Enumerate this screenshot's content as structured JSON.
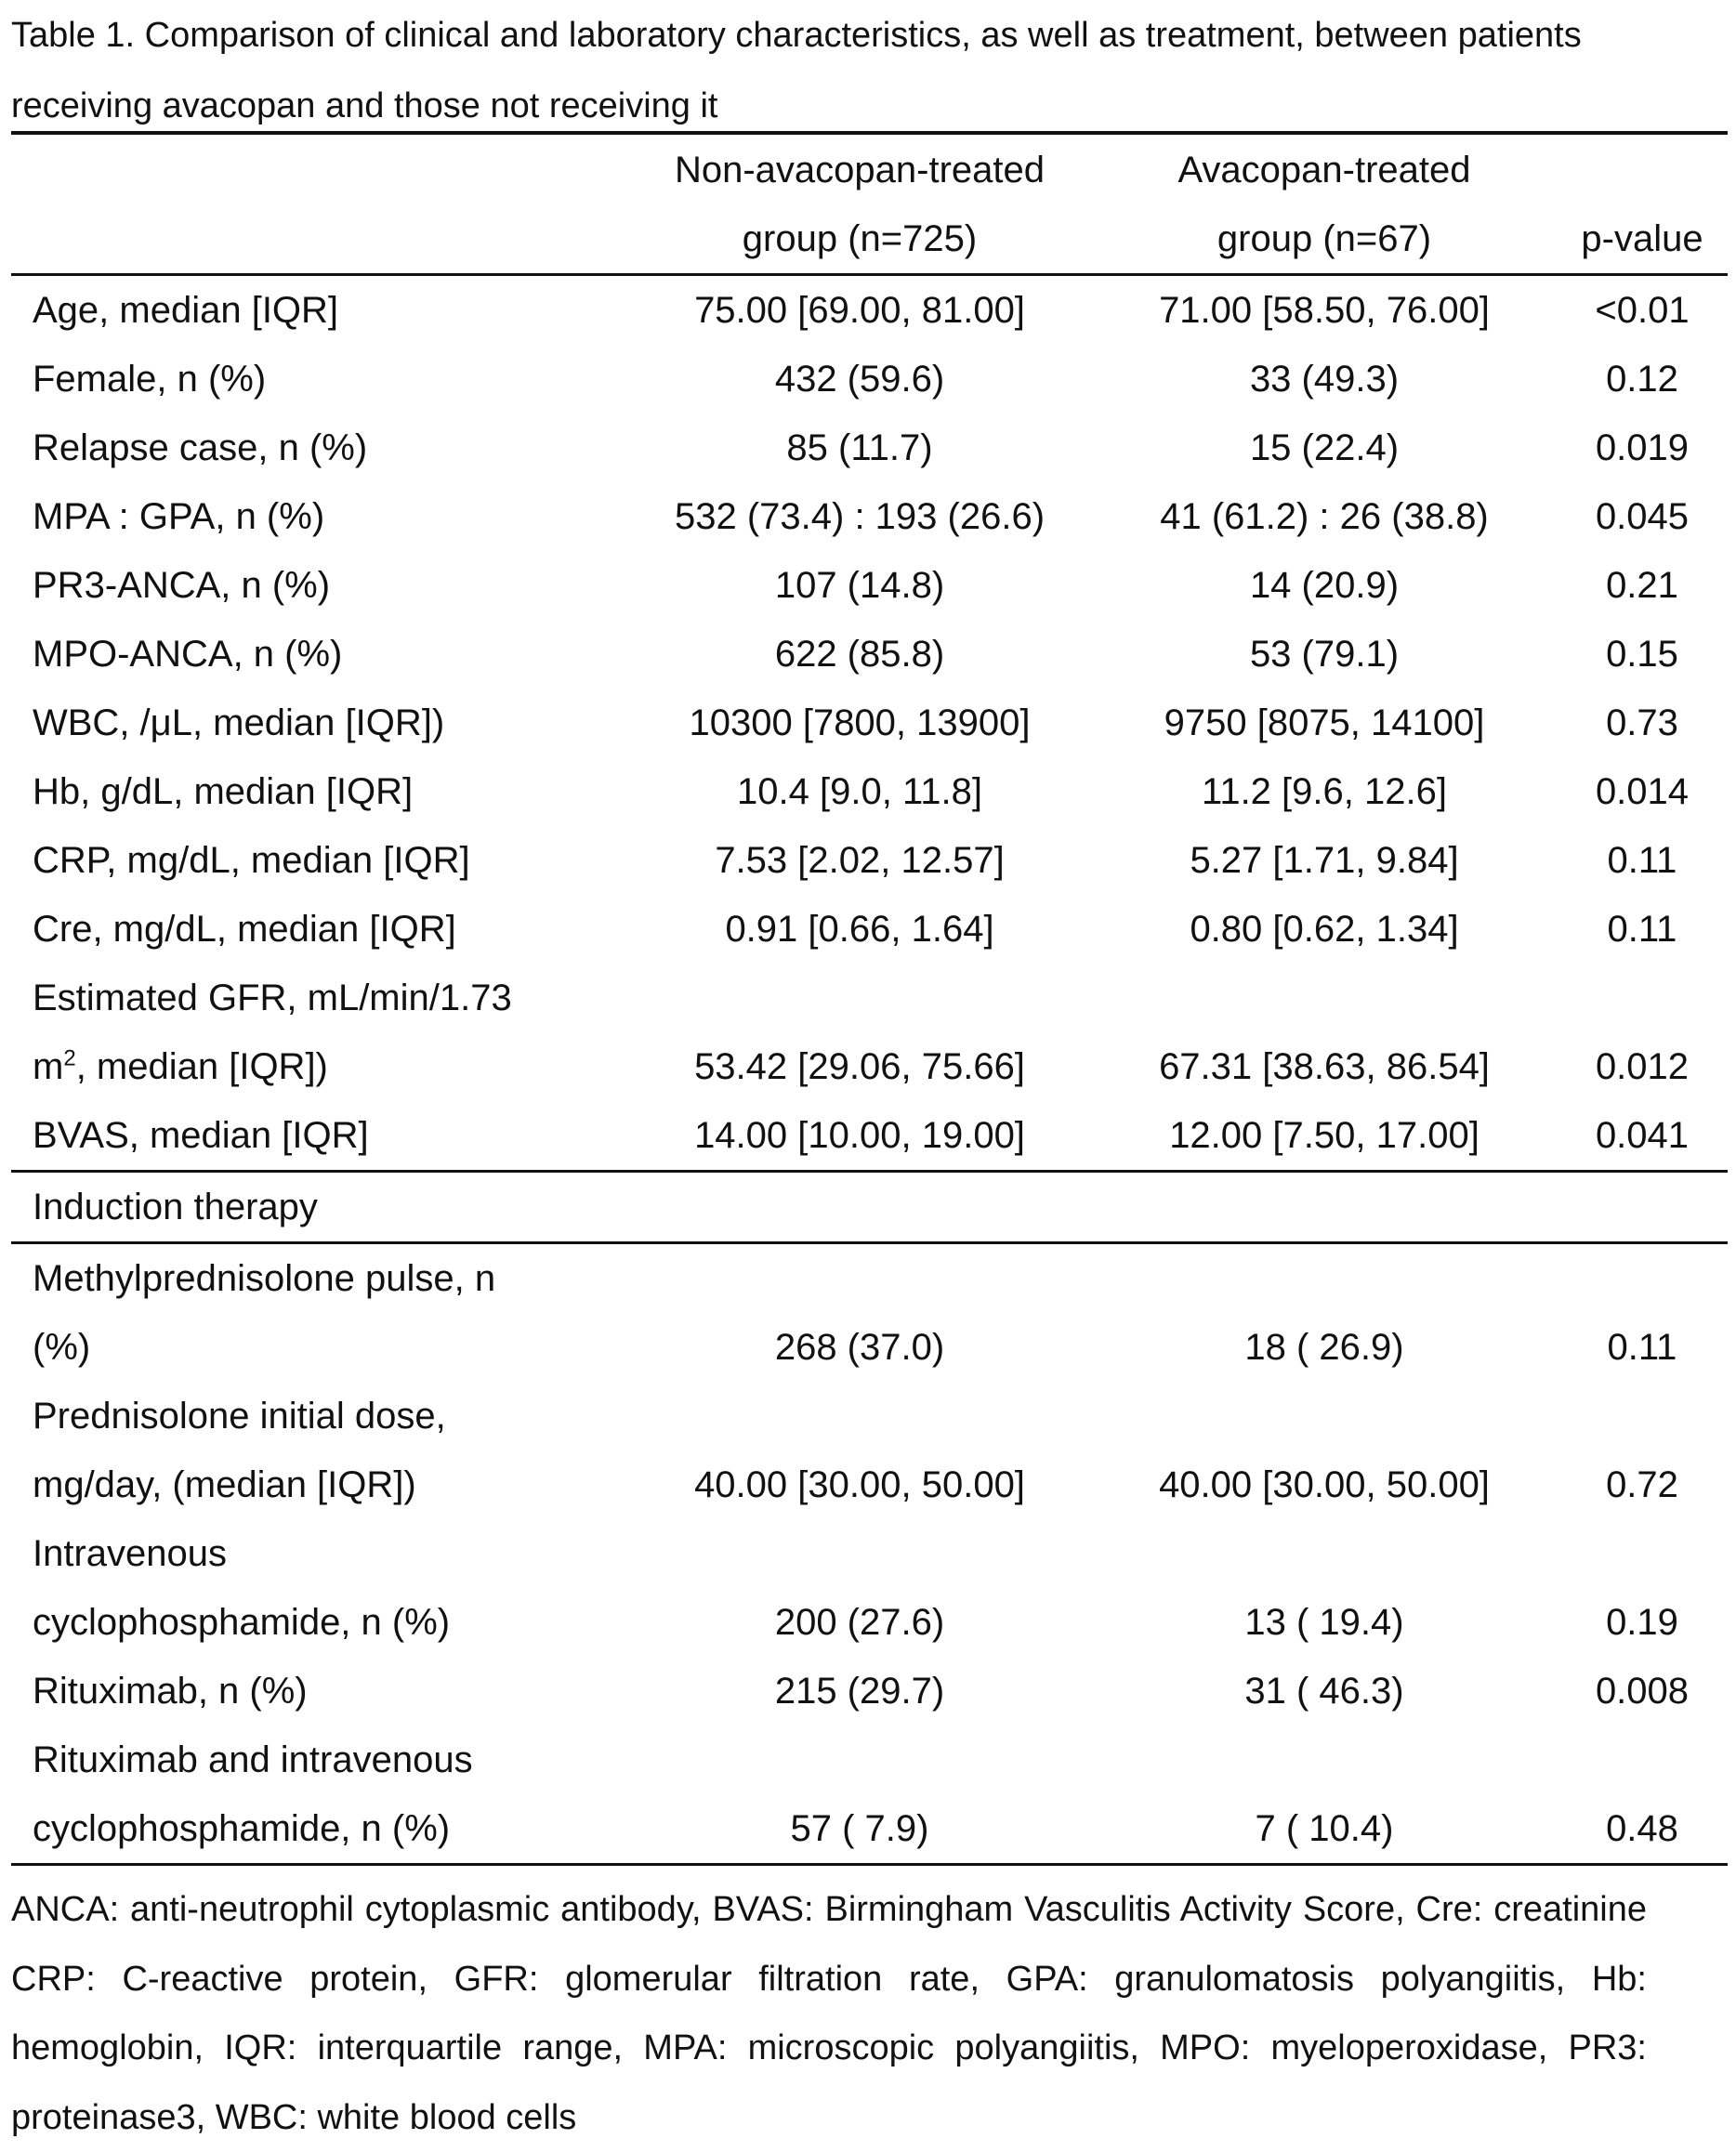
{
  "title": "Table 1. Comparison of clinical and laboratory characteristics, as well as treatment, between patients receiving avacopan and those not receiving it",
  "header": {
    "col1_line1": "Non-avacopan-treated",
    "col1_line2": "group (n=725)",
    "col2_line1": "Avacopan-treated",
    "col2_line2": "group (n=67)",
    "p": "p-value"
  },
  "rows": [
    {
      "label": [
        "Age, median [IQR]"
      ],
      "non": "75.00 [69.00, 81.00]",
      "ava": "71.00 [58.50, 76.00]",
      "p": "<0.01"
    },
    {
      "label": [
        "Female, n (%)"
      ],
      "non": "432 (59.6)",
      "ava": "33 (49.3)",
      "p": "0.12"
    },
    {
      "label": [
        "Relapse case, n (%)"
      ],
      "non": "85 (11.7)",
      "ava": "15 (22.4)",
      "p": "0.019"
    },
    {
      "label": [
        "MPA : GPA, n (%)"
      ],
      "non": "532 (73.4) : 193 (26.6)",
      "ava": "41 (61.2) : 26 (38.8)",
      "p": "0.045"
    },
    {
      "label": [
        "PR3-ANCA, n (%)"
      ],
      "non": "107 (14.8)",
      "ava": "14 (20.9)",
      "p": "0.21"
    },
    {
      "label": [
        "MPO-ANCA, n (%)"
      ],
      "non": "622 (85.8)",
      "ava": "53 (79.1)",
      "p": "0.15"
    },
    {
      "label": [
        "WBC, /μL, median [IQR])"
      ],
      "non": "10300 [7800, 13900]",
      "ava": "9750 [8075, 14100]",
      "p": "0.73"
    },
    {
      "label": [
        "Hb, g/dL, median [IQR]"
      ],
      "non": "10.4 [9.0, 11.8]",
      "ava": "11.2 [9.6, 12.6]",
      "p": "0.014"
    },
    {
      "label": [
        "CRP, mg/dL, median [IQR]"
      ],
      "non": "7.53 [2.02, 12.57]",
      "ava": "5.27 [1.71, 9.84]",
      "p": "0.11"
    },
    {
      "label": [
        "Cre, mg/dL, median [IQR]"
      ],
      "non": "0.91 [0.66, 1.64]",
      "ava": "0.80 [0.62, 1.34]",
      "p": "0.11"
    },
    {
      "label": [
        "Estimated GFR, mL/min/1.73",
        "m"
      ],
      "sup": "2",
      "post": ", median [IQR])",
      "non": "53.42 [29.06, 75.66]",
      "ava": "67.31 [38.63, 86.54]",
      "p": "0.012"
    },
    {
      "label": [
        "BVAS, median [IQR]"
      ],
      "non": "14.00 [10.00, 19.00]",
      "ava": "12.00 [7.50, 17.00]",
      "p": "0.041"
    }
  ],
  "section": "Induction therapy",
  "therapy_rows": [
    {
      "label": [
        "Methylprednisolone pulse, n",
        "(%)"
      ],
      "non": "268 (37.0)",
      "ava": "18 ( 26.9)",
      "p": "0.11"
    },
    {
      "label": [
        "Prednisolone initial dose,",
        "mg/day, (median [IQR])"
      ],
      "non": "40.00 [30.00, 50.00]",
      "ava": "40.00 [30.00, 50.00]",
      "p": "0.72"
    },
    {
      "label": [
        "Intravenous",
        "cyclophosphamide, n (%)"
      ],
      "non": "200 (27.6)",
      "ava": "13 ( 19.4)",
      "p": "0.19"
    },
    {
      "label": [
        "Rituximab, n (%)"
      ],
      "non": "215 (29.7)",
      "ava": "31 ( 46.3)",
      "p": "0.008"
    },
    {
      "label": [
        "Rituximab and intravenous",
        "cyclophosphamide, n (%)"
      ],
      "non": "57 ( 7.9)",
      "ava": "7 ( 10.4)",
      "p": "0.48"
    }
  ],
  "footnote": "ANCA: anti-neutrophil cytoplasmic antibody, BVAS: Birmingham Vasculitis Activity Score, Cre: creatinine CRP: C-reactive protein, GFR: glomerular filtration rate, GPA: granulomatosis polyangiitis, Hb: hemoglobin, IQR: interquartile range, MPA: microscopic polyangiitis, MPO: myeloperoxidase, PR3: proteinase3, WBC: white blood cells"
}
